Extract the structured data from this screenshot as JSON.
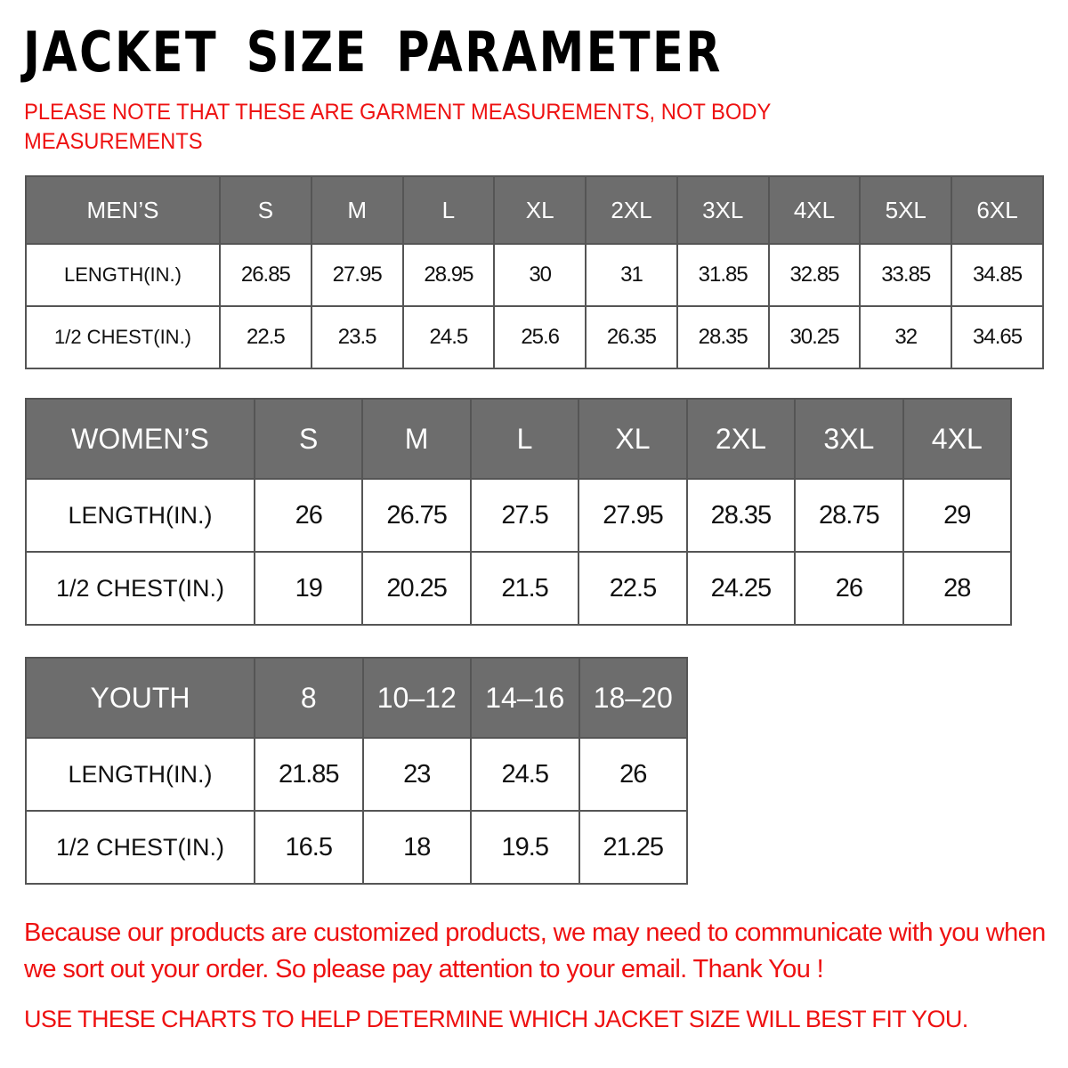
{
  "title": "JACKET SIZE PARAMETER",
  "note": "PLEASE NOTE THAT THESE ARE GARMENT MEASUREMENTS, NOT BODY MEASUREMENTS",
  "colors": {
    "header_bg": "#6d6d6d",
    "accent_red": "#ee1111"
  },
  "tables": {
    "men": {
      "label": "MEN’S",
      "sizes": [
        "S",
        "M",
        "L",
        "XL",
        "2XL",
        "3XL",
        "4XL",
        "5XL",
        "6XL"
      ],
      "rows": [
        {
          "label": "LENGTH(IN.)",
          "values": [
            "26.85",
            "27.95",
            "28.95",
            "30",
            "31",
            "31.85",
            "32.85",
            "33.85",
            "34.85"
          ]
        },
        {
          "label": "1/2 CHEST(IN.)",
          "values": [
            "22.5",
            "23.5",
            "24.5",
            "25.6",
            "26.35",
            "28.35",
            "30.25",
            "32",
            "34.65"
          ]
        }
      ]
    },
    "women": {
      "label": "WOMEN’S",
      "sizes": [
        "S",
        "M",
        "L",
        "XL",
        "2XL",
        "3XL",
        "4XL"
      ],
      "rows": [
        {
          "label": "LENGTH(IN.)",
          "values": [
            "26",
            "26.75",
            "27.5",
            "27.95",
            "28.35",
            "28.75",
            "29"
          ]
        },
        {
          "label": "1/2 CHEST(IN.)",
          "values": [
            "19",
            "20.25",
            "21.5",
            "22.5",
            "24.25",
            "26",
            "28"
          ]
        }
      ]
    },
    "youth": {
      "label": "YOUTH",
      "sizes": [
        "8",
        "10–12",
        "14–16",
        "18–20"
      ],
      "rows": [
        {
          "label": "LENGTH(IN.)",
          "values": [
            "21.85",
            "23",
            "24.5",
            "26"
          ]
        },
        {
          "label": "1/2 CHEST(IN.)",
          "values": [
            "16.5",
            "18",
            "19.5",
            "21.25"
          ]
        }
      ]
    }
  },
  "footer": {
    "message": "Because our products are customized products, we may need to communicate with you when we sort out your order. So please pay attention to your email. Thank You !",
    "instruction": "USE THESE CHARTS TO HELP DETERMINE WHICH JACKET SIZE WILL BEST FIT YOU."
  }
}
